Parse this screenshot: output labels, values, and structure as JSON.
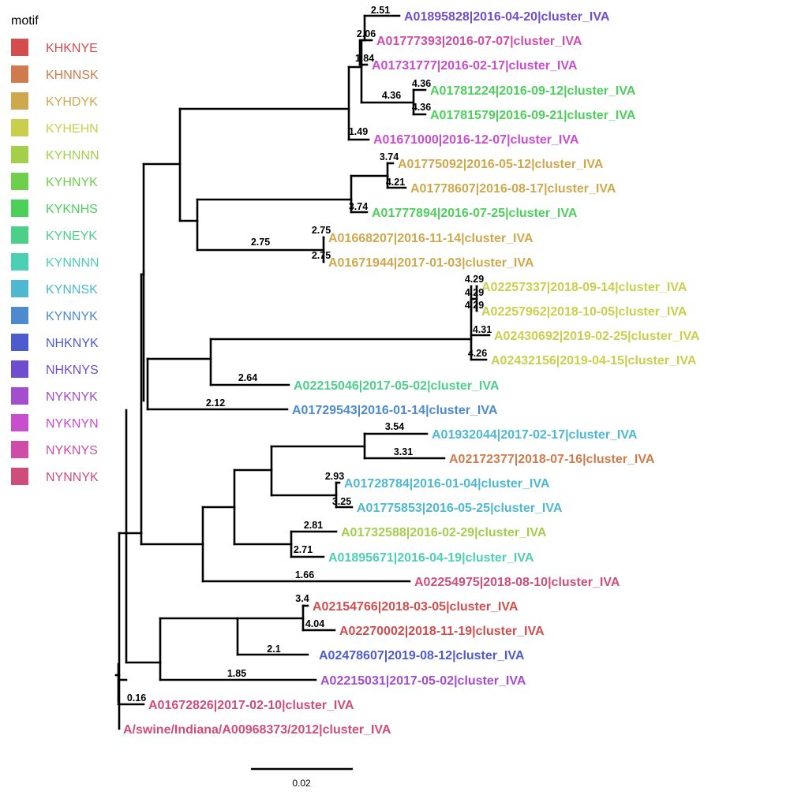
{
  "legend": {
    "title": "motif",
    "items": [
      {
        "label": "KHKNYE",
        "color": "#d34d4d"
      },
      {
        "label": "KHNNSK",
        "color": "#cf7b4d"
      },
      {
        "label": "KYHDYK",
        "color": "#cfa84d"
      },
      {
        "label": "KYHEHN",
        "color": "#c9cf4d"
      },
      {
        "label": "KYHNNN",
        "color": "#a3cf4d"
      },
      {
        "label": "KYHNYK",
        "color": "#6fcf4d"
      },
      {
        "label": "KYKNHS",
        "color": "#4dcf5b"
      },
      {
        "label": "KYNEYK",
        "color": "#4dcf8a"
      },
      {
        "label": "KYNNNN",
        "color": "#4dcfb4"
      },
      {
        "label": "KYNNSK",
        "color": "#4db8cf"
      },
      {
        "label": "KYNNYK",
        "color": "#4d8acf"
      },
      {
        "label": "NHKNYK",
        "color": "#4d5bcf"
      },
      {
        "label": "NHKNYS",
        "color": "#6f4dcf"
      },
      {
        "label": "NYKNYK",
        "color": "#a34dcf"
      },
      {
        "label": "NYKNYN",
        "color": "#c94dcf"
      },
      {
        "label": "NYKNYS",
        "color": "#cf4da8"
      },
      {
        "label": "NYNNYK",
        "color": "#cf4d7b"
      }
    ]
  },
  "tips": [
    {
      "label": "A01895828|2016-04-20|cluster_IVA",
      "motif": "NHKNYS",
      "color": "#6f4dcf"
    },
    {
      "label": "A01777393|2016-07-07|cluster_IVA",
      "motif": "NYKNYS",
      "color": "#cf4da8"
    },
    {
      "label": "A01731777|2016-02-17|cluster_IVA",
      "motif": "NYKNYN",
      "color": "#c94dcf"
    },
    {
      "label": "A01781224|2016-09-12|cluster_IVA",
      "motif": "KYKNHS",
      "color": "#4dcf5b"
    },
    {
      "label": "A01781579|2016-09-21|cluster_IVA",
      "motif": "KYKNHS",
      "color": "#4dcf5b"
    },
    {
      "label": "A01671000|2016-12-07|cluster_IVA",
      "motif": "NYKNYN",
      "color": "#c94dcf"
    },
    {
      "label": "A01775092|2016-05-12|cluster_IVA",
      "motif": "KYHDYK",
      "color": "#cfa84d"
    },
    {
      "label": "A01778607|2016-08-17|cluster_IVA",
      "motif": "KYHDYK",
      "color": "#cfa84d"
    },
    {
      "label": "A01777894|2016-07-25|cluster_IVA",
      "motif": "KYKNHS",
      "color": "#4dcf5b"
    },
    {
      "label": "A01668207|2016-11-14|cluster_IVA",
      "motif": "KYHDYK",
      "color": "#cfa84d"
    },
    {
      "label": "A01671944|2017-01-03|cluster_IVA",
      "motif": "KYHDYK",
      "color": "#cfa84d"
    },
    {
      "label": "A02257337|2018-09-14|cluster_IVA",
      "motif": "KYHEHN",
      "color": "#c9cf4d"
    },
    {
      "label": "A02257962|2018-10-05|cluster_IVA",
      "motif": "KYHEHN",
      "color": "#c9cf4d"
    },
    {
      "label": "A02430692|2019-02-25|cluster_IVA",
      "motif": "KYHEHN",
      "color": "#c9cf4d"
    },
    {
      "label": "A02432156|2019-04-15|cluster_IVA",
      "motif": "KYHEHN",
      "color": "#c9cf4d"
    },
    {
      "label": "A02215046|2017-05-02|cluster_IVA",
      "motif": "KYNEYK",
      "color": "#4dcf8a"
    },
    {
      "label": "A01729543|2016-01-14|cluster_IVA",
      "motif": "KYNNYK",
      "color": "#4d8acf"
    },
    {
      "label": "A01932044|2017-02-17|cluster_IVA",
      "motif": "KYNNSK",
      "color": "#4db8cf"
    },
    {
      "label": "A02172377|2018-07-16|cluster_IVA",
      "motif": "KHNNSK",
      "color": "#cf7b4d"
    },
    {
      "label": "A01728784|2016-01-04|cluster_IVA",
      "motif": "KYNNSK",
      "color": "#4db8cf"
    },
    {
      "label": "A01775853|2016-05-25|cluster_IVA",
      "motif": "KYNNSK",
      "color": "#4db8cf"
    },
    {
      "label": "A01732588|2016-02-29|cluster_IVA",
      "motif": "KYHNNN",
      "color": "#a3cf4d"
    },
    {
      "label": "A01895671|2016-04-19|cluster_IVA",
      "motif": "KYNNNN",
      "color": "#4dcfb4"
    },
    {
      "label": "A02254975|2018-08-10|cluster_IVA",
      "motif": "NYNNYK",
      "color": "#cf4d7b"
    },
    {
      "label": "A02154766|2018-03-05|cluster_IVA",
      "motif": "KHKNYE",
      "color": "#d34d4d"
    },
    {
      "label": "A02270002|2018-11-19|cluster_IVA",
      "motif": "KHKNYE",
      "color": "#d34d4d"
    },
    {
      "label": "A02478607|2019-08-12|cluster_IVA",
      "motif": "NHKNYK",
      "color": "#4d5bcf"
    },
    {
      "label": "A02215031|2017-05-02|cluster_IVA",
      "motif": "NYKNYK",
      "color": "#a34dcf"
    },
    {
      "label": "A01672826|2017-02-10|cluster_IVA",
      "motif": "NYNNYK",
      "color": "#cf4d7b"
    },
    {
      "label": "A/swine/Indiana/A00968373/2012|cluster_IVA",
      "motif": "NYNNYK",
      "color": "#cf4d7b"
    }
  ],
  "branch_labels": [
    "2.51",
    "2.06",
    "1.84",
    "4.36",
    "4.36",
    "4.36",
    "1.49",
    "3.74",
    "4.21",
    "3.74",
    "2.75",
    "2.75",
    "2.75",
    "4.29",
    "4.29",
    "4.29",
    "4.31",
    "4.26",
    "2.64",
    "2.12",
    "3.54",
    "3.31",
    "2.93",
    "3.25",
    "2.81",
    "2.71",
    "1.66",
    "3.4",
    "4.04",
    "2.1",
    "1.85",
    "0.16"
  ],
  "scale_bar": {
    "label": "0.02"
  }
}
